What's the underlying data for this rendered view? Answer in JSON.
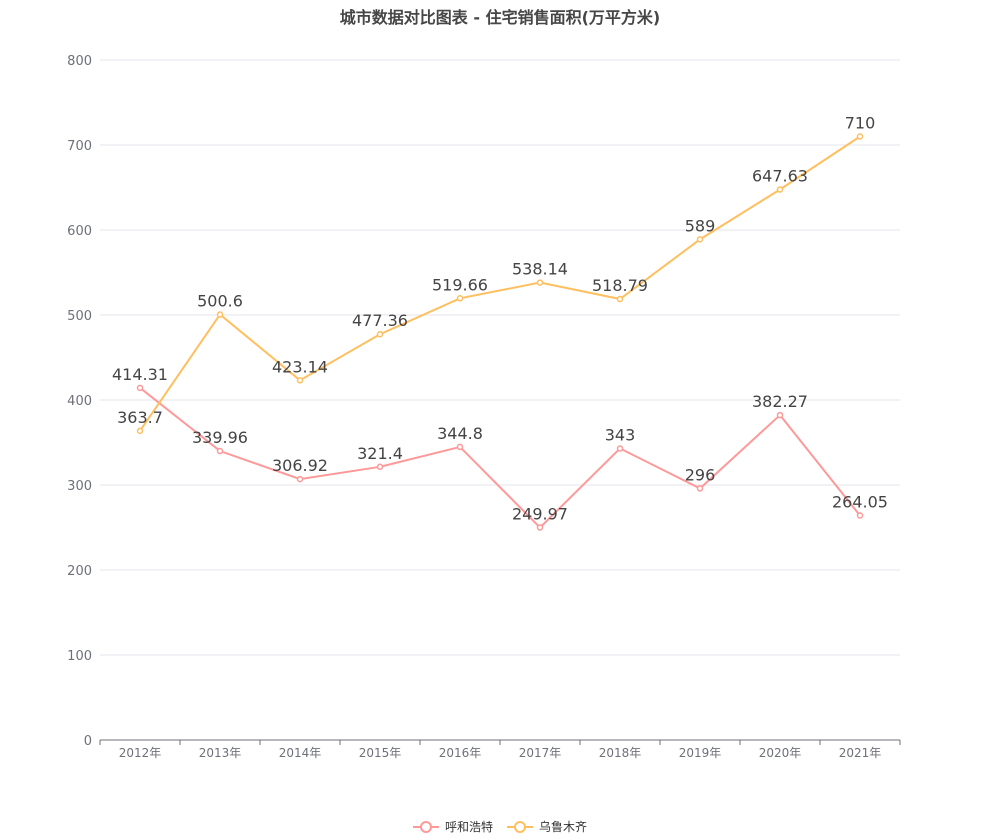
{
  "chart_data": {
    "type": "line",
    "title": "城市数据对比图表 - 住宅销售面积(万平方米)",
    "categories": [
      "2012年",
      "2013年",
      "2014年",
      "2015年",
      "2016年",
      "2017年",
      "2018年",
      "2019年",
      "2020年",
      "2021年"
    ],
    "ylim": [
      0,
      800
    ],
    "yticks": [
      0,
      100,
      200,
      300,
      400,
      500,
      600,
      700,
      800
    ],
    "grid": true,
    "legend_position": "bottom",
    "series": [
      {
        "name": "呼和浩特",
        "color": "#ff9999",
        "values": [
          414.31,
          339.96,
          306.92,
          321.4,
          344.8,
          249.97,
          343,
          296,
          382.27,
          264.05
        ]
      },
      {
        "name": "乌鲁木齐",
        "color": "#ffbf5f",
        "values": [
          363.7,
          500.6,
          423.14,
          477.36,
          519.66,
          538.14,
          518.79,
          589,
          647.63,
          710
        ]
      }
    ]
  }
}
